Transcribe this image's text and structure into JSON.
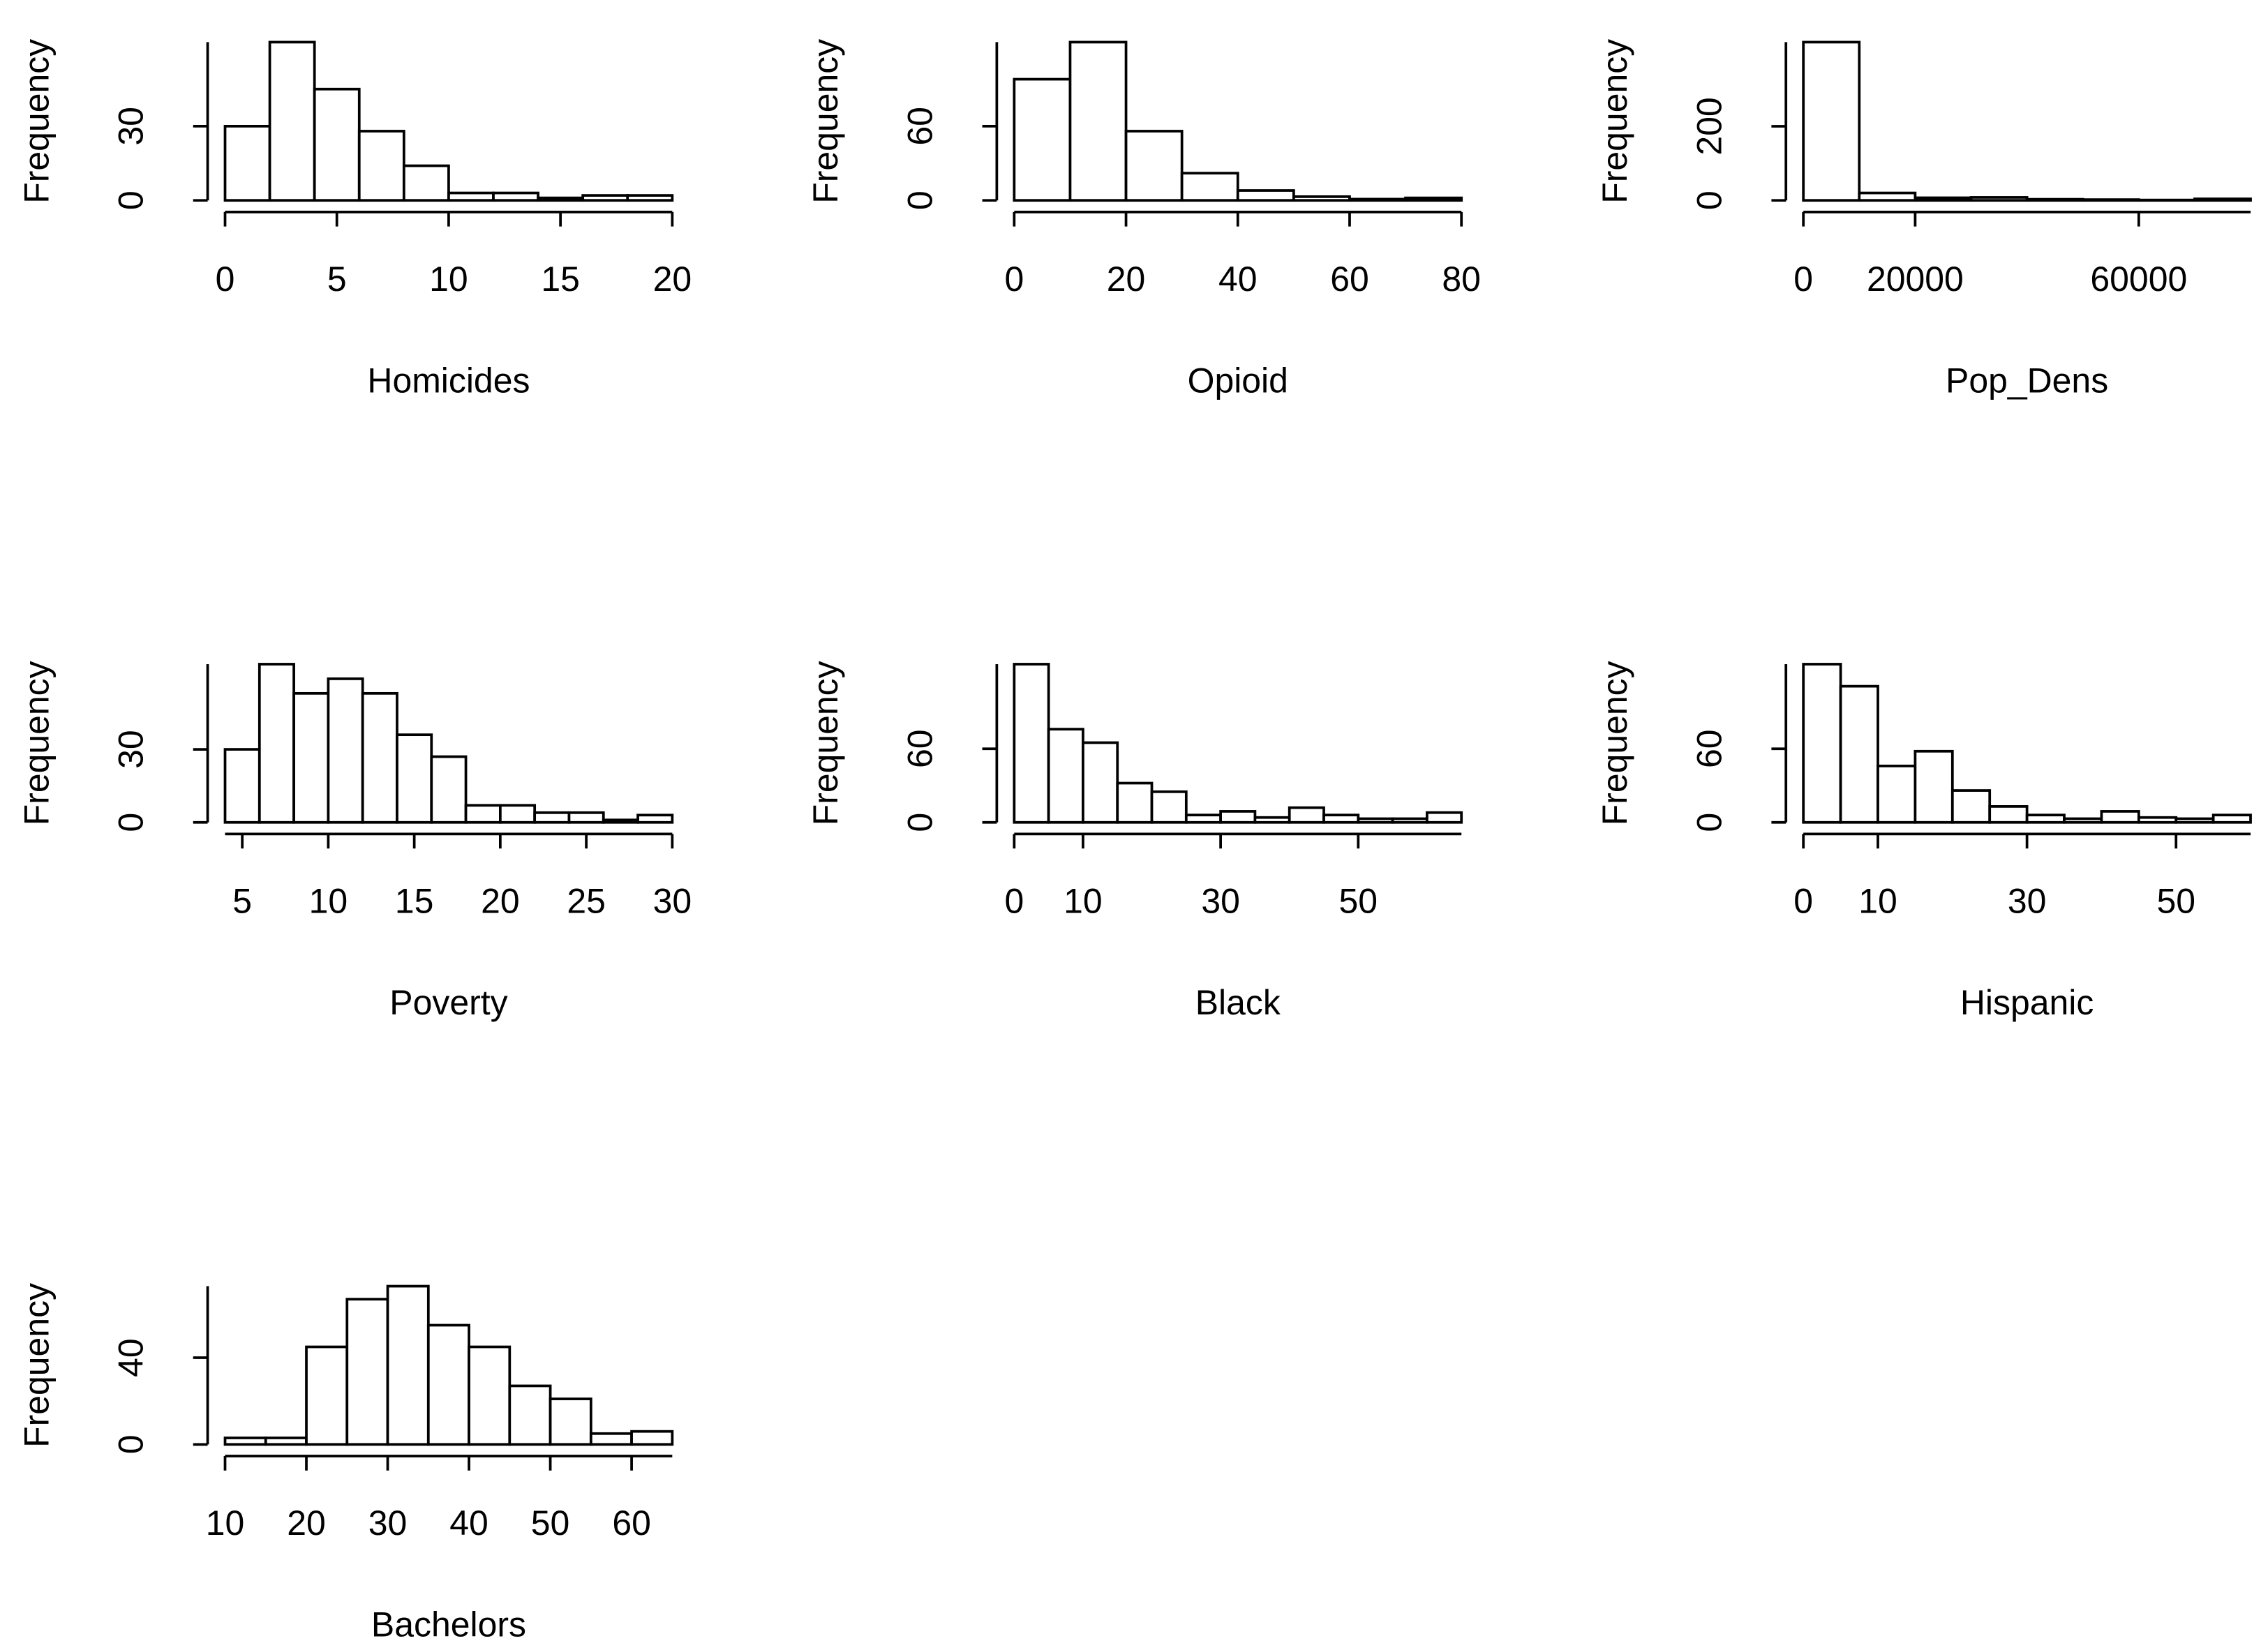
{
  "chart_data": [
    {
      "type": "histogram",
      "xlabel": "Homicides",
      "ylabel": "Frequency",
      "color": "#ffffff",
      "bins": [
        0,
        2,
        4,
        6,
        8,
        10,
        12,
        14,
        16,
        18,
        20
      ],
      "values": [
        30,
        64,
        45,
        28,
        14,
        3,
        3,
        1,
        2,
        2
      ],
      "xlim": [
        0,
        20
      ],
      "ylim": [
        0,
        64
      ],
      "xticks": [
        0,
        5,
        10,
        15,
        20
      ],
      "yticks": [
        0,
        30
      ]
    },
    {
      "type": "histogram",
      "xlabel": "Opioid",
      "ylabel": "Frequency",
      "color": "#ffffff",
      "bins": [
        0,
        10,
        20,
        30,
        40,
        50,
        60,
        70,
        80
      ],
      "values": [
        98,
        128,
        56,
        22,
        8,
        3,
        1,
        2
      ],
      "xlim": [
        0,
        80
      ],
      "ylim": [
        0,
        128
      ],
      "xticks": [
        0,
        20,
        40,
        60,
        80
      ],
      "yticks": [
        0,
        60
      ]
    },
    {
      "type": "histogram",
      "xlabel": "Pop_Dens",
      "ylabel": "Frequency",
      "color": "#ffffff",
      "bins": [
        0,
        10000,
        20000,
        30000,
        40000,
        50000,
        60000,
        70000,
        80000
      ],
      "values": [
        427,
        20,
        7,
        8,
        3,
        2,
        1,
        4
      ],
      "xlim": [
        0,
        80000
      ],
      "ylim": [
        0,
        427
      ],
      "xticks": [
        0,
        20000,
        60000
      ],
      "yticks": [
        0,
        200
      ]
    },
    {
      "type": "histogram",
      "xlabel": "Poverty",
      "ylabel": "Frequency",
      "color": "#ffffff",
      "bins": [
        4,
        6,
        8,
        10,
        12,
        14,
        16,
        18,
        20,
        22,
        24,
        26,
        28,
        30
      ],
      "values": [
        30,
        65,
        53,
        59,
        53,
        36,
        27,
        7,
        7,
        4,
        4,
        1,
        3
      ],
      "xlim": [
        4,
        30
      ],
      "ylim": [
        0,
        65
      ],
      "xticks": [
        5,
        10,
        15,
        20,
        25,
        30
      ],
      "yticks": [
        0,
        30
      ]
    },
    {
      "type": "histogram",
      "xlabel": "Black",
      "ylabel": "Frequency",
      "color": "#ffffff",
      "bins": [
        0,
        5,
        10,
        15,
        20,
        25,
        30,
        35,
        40,
        45,
        50,
        55,
        60,
        65
      ],
      "values": [
        129,
        76,
        65,
        32,
        25,
        6,
        9,
        4,
        12,
        6,
        3,
        3,
        8
      ],
      "xlim": [
        0,
        65
      ],
      "ylim": [
        0,
        129
      ],
      "xticks": [
        0,
        10,
        30,
        50
      ],
      "yticks": [
        0,
        60
      ]
    },
    {
      "type": "histogram",
      "xlabel": "Hispanic",
      "ylabel": "Frequency",
      "color": "#ffffff",
      "bins": [
        0,
        5,
        10,
        15,
        20,
        25,
        30,
        35,
        40,
        45,
        50,
        55,
        60
      ],
      "values": [
        129,
        111,
        46,
        58,
        26,
        13,
        6,
        3,
        9,
        4,
        3,
        6
      ],
      "xlim": [
        0,
        60
      ],
      "ylim": [
        0,
        129
      ],
      "xticks": [
        0,
        10,
        30,
        50
      ],
      "yticks": [
        0,
        60
      ]
    },
    {
      "type": "histogram",
      "xlabel": "Bachelors",
      "ylabel": "Frequency",
      "color": "#ffffff",
      "bins": [
        10,
        15,
        20,
        25,
        30,
        35,
        40,
        45,
        50,
        55,
        60,
        65
      ],
      "values": [
        3,
        3,
        45,
        67,
        73,
        55,
        45,
        27,
        21,
        5,
        6
      ],
      "xlim": [
        10,
        65
      ],
      "ylim": [
        0,
        73
      ],
      "xticks": [
        10,
        20,
        30,
        40,
        50,
        60
      ],
      "yticks": [
        0,
        40
      ]
    }
  ]
}
